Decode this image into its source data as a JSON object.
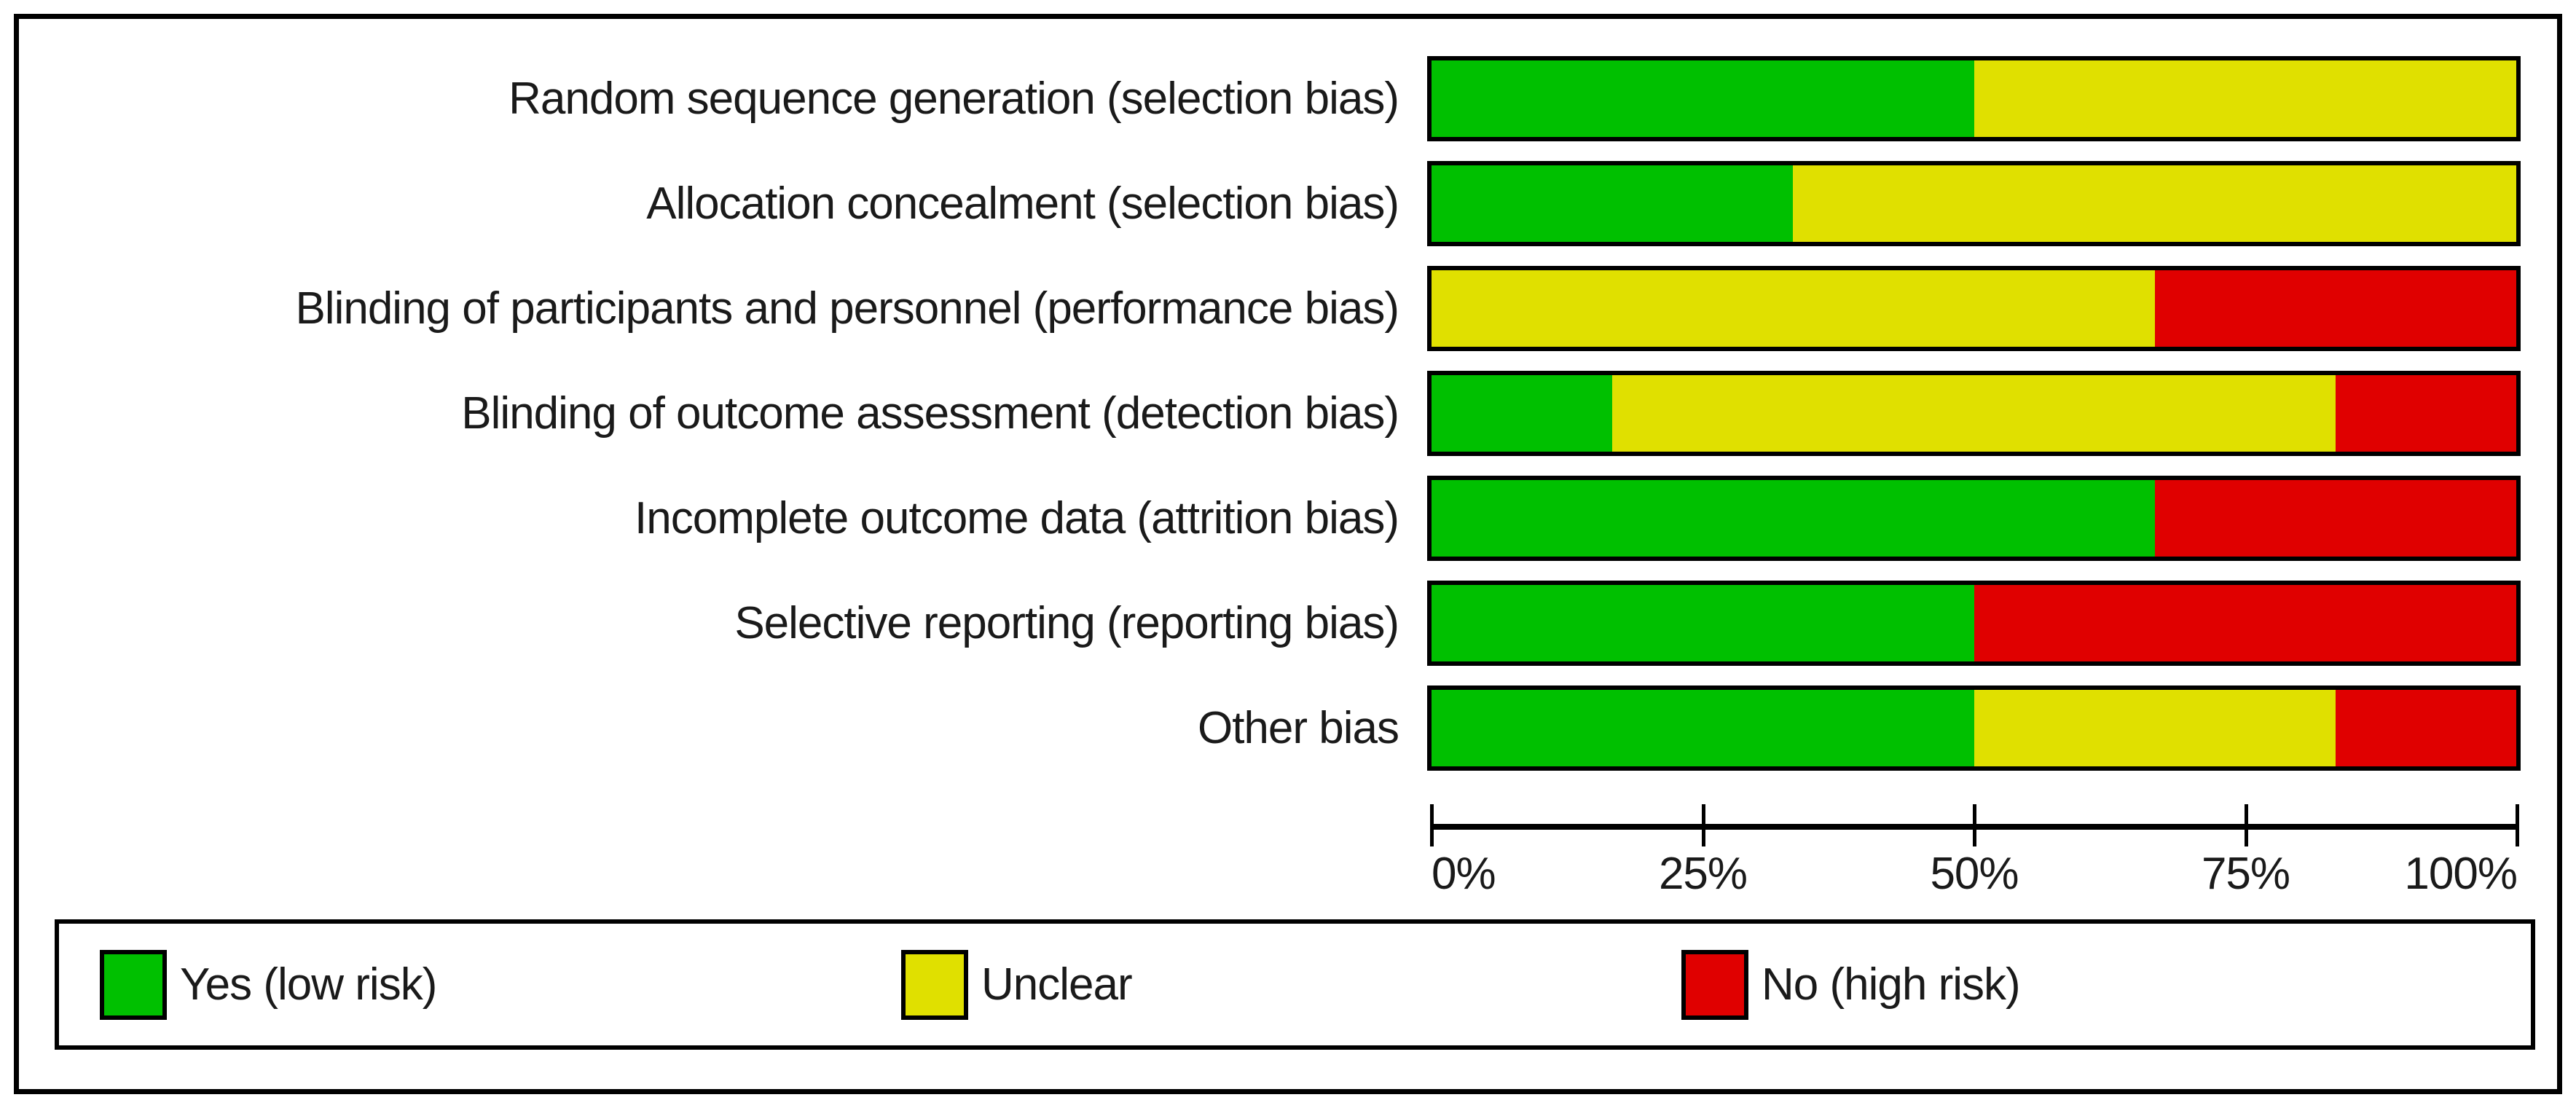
{
  "chart_data": {
    "type": "bar",
    "subtype": "horizontal-stacked",
    "title": "",
    "categories": [
      "Random sequence generation (selection bias)",
      "Allocation concealment (selection bias)",
      "Blinding of participants and personnel (performance bias)",
      "Blinding of outcome assessment (detection bias)",
      "Incomplete outcome data (attrition bias)",
      "Selective reporting (reporting bias)",
      "Other bias"
    ],
    "series": [
      {
        "key": "yes",
        "name": "Yes (low risk)",
        "color": "#00C000",
        "values": [
          50,
          33.33,
          0,
          16.67,
          66.67,
          50,
          50
        ]
      },
      {
        "key": "unclear",
        "name": "Unclear",
        "color": "#E0E000",
        "values": [
          50,
          66.67,
          66.67,
          66.67,
          0,
          0,
          33.33
        ]
      },
      {
        "key": "no",
        "name": "No (high risk)",
        "color": "#E00000",
        "values": [
          0,
          0,
          33.33,
          16.67,
          33.33,
          50,
          16.67
        ]
      }
    ],
    "x_axis": {
      "range": [
        0,
        100
      ],
      "tick_positions": [
        0,
        25,
        50,
        75,
        100
      ],
      "tick_labels": [
        "0%",
        "25%",
        "50%",
        "75%",
        "100%"
      ]
    },
    "legend_position": "bottom",
    "grid": false
  }
}
